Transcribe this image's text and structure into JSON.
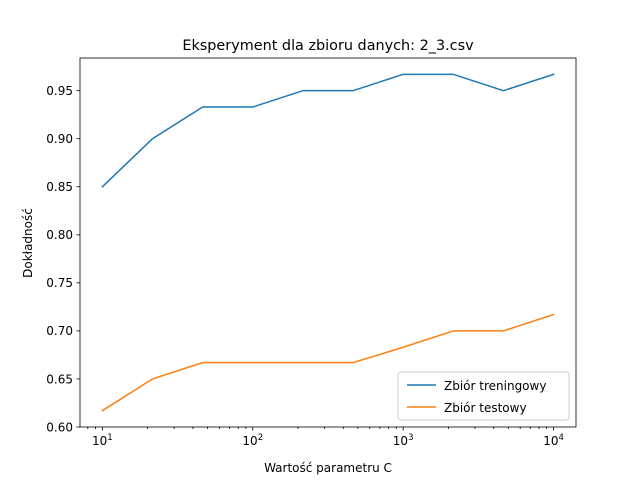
{
  "chart_data": {
    "type": "line",
    "title": "Eksperyment dla zbioru danych: 2_3.csv",
    "xlabel": "Wartość parametru C",
    "ylabel": "Dokładność",
    "x_scale": "log",
    "xlim": [
      7.1,
      14100
    ],
    "ylim": [
      0.6,
      0.984
    ],
    "x_ticks": [
      10,
      100,
      1000,
      10000
    ],
    "x_tick_labels": [
      {
        "base": "10",
        "exp": "1"
      },
      {
        "base": "10",
        "exp": "2"
      },
      {
        "base": "10",
        "exp": "3"
      },
      {
        "base": "10",
        "exp": "4"
      }
    ],
    "y_ticks": [
      0.6,
      0.65,
      0.7,
      0.75,
      0.8,
      0.85,
      0.9,
      0.95
    ],
    "y_tick_labels": [
      "0.60",
      "0.65",
      "0.70",
      "0.75",
      "0.80",
      "0.85",
      "0.90",
      "0.95"
    ],
    "x": [
      10,
      21.54,
      46.42,
      100,
      215.4,
      464.2,
      1000,
      2154,
      4642,
      10000
    ],
    "series": [
      {
        "name": "Zbiór treningowy",
        "color": "#1f77b4",
        "values": [
          0.85,
          0.9,
          0.933,
          0.933,
          0.95,
          0.95,
          0.967,
          0.967,
          0.95,
          0.967
        ]
      },
      {
        "name": "Zbiór testowy",
        "color": "#ff7f0e",
        "values": [
          0.617,
          0.65,
          0.667,
          0.667,
          0.667,
          0.667,
          0.683,
          0.7,
          0.7,
          0.717
        ]
      }
    ],
    "legend_position": "lower-right",
    "grid": false
  }
}
